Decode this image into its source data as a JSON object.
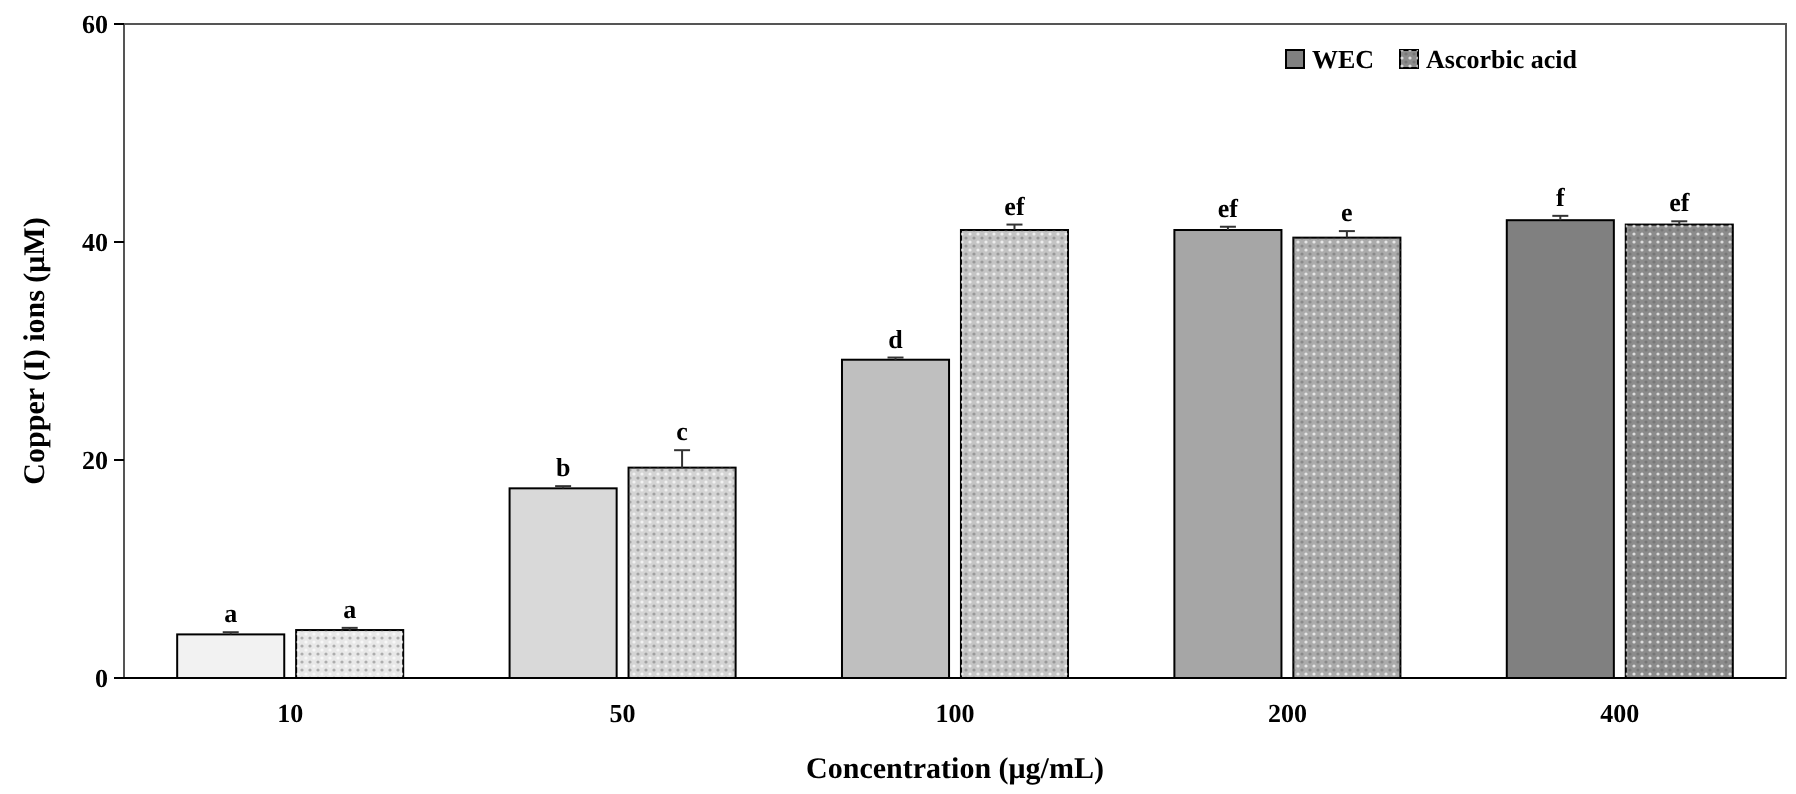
{
  "chart_data": {
    "type": "bar",
    "xlabel": "Concentration (μg/mL)",
    "ylabel": "Copper (I) ions (μM)",
    "categories": [
      "10",
      "50",
      "100",
      "200",
      "400"
    ],
    "series": [
      {
        "name": "WEC",
        "color": "#808080",
        "colors": [
          "#f2f2f2",
          "#d9d9d9",
          "#bfbfbf",
          "#a6a6a6",
          "#808080"
        ],
        "values": [
          4.0,
          17.4,
          29.2,
          41.1,
          42.0
        ],
        "errors": [
          0.2,
          0.2,
          0.2,
          0.3,
          0.4
        ],
        "value_labels": [
          "a",
          "b",
          "d",
          "ef",
          "f"
        ]
      },
      {
        "name": "Ascorbic acid",
        "color": "#8c8c8c",
        "colors": [
          "#e8e8e8",
          "#d4d4d4",
          "#c4c4c4",
          "#ababab",
          "#8c8c8c"
        ],
        "values": [
          4.4,
          19.3,
          41.1,
          40.4,
          41.6
        ],
        "errors": [
          0.2,
          1.6,
          0.5,
          0.6,
          0.3
        ],
        "value_labels": [
          "a",
          "c",
          "ef",
          "e",
          "ef"
        ]
      }
    ],
    "ylim": [
      0,
      60
    ],
    "yticks": [
      0,
      20,
      40,
      60
    ],
    "legend": "top right"
  }
}
